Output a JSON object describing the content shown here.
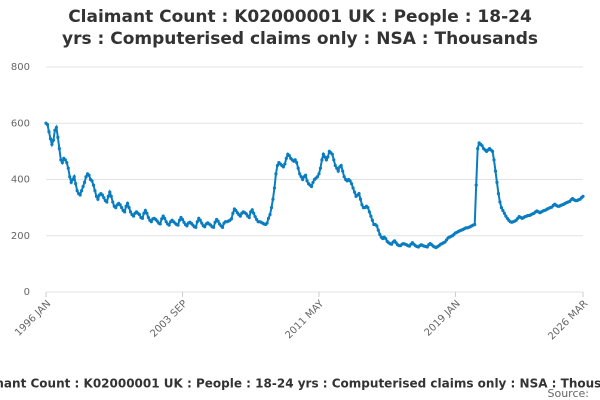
{
  "chart_data": {
    "type": "line",
    "title": "Claimant Count : K02000001 UK : People : 18-24 yrs : Computerised claims only : NSA : Thousands",
    "source": "Source:",
    "categories": [
      "1996 JAN",
      null,
      null,
      null,
      null,
      null,
      null,
      null,
      null,
      null,
      null,
      null,
      null,
      null,
      null,
      null,
      null,
      null,
      null,
      null,
      null,
      null,
      null,
      null,
      null,
      null,
      null,
      null,
      null,
      null,
      null,
      null,
      null,
      null,
      null,
      null,
      null,
      null,
      null,
      null,
      null,
      null,
      null,
      null,
      null,
      null,
      null,
      null,
      null,
      null,
      null,
      null,
      null,
      null,
      null,
      null,
      null,
      null,
      null,
      null,
      null,
      null,
      null,
      null,
      null,
      null,
      null,
      null,
      null,
      null,
      null,
      null,
      null,
      null,
      null,
      null,
      null,
      null,
      null,
      null,
      null,
      null,
      null,
      null,
      null,
      null,
      null,
      null,
      null,
      null,
      null,
      null,
      "2003 SEP",
      null,
      null,
      null,
      null,
      null,
      null,
      null,
      null,
      null,
      null,
      null,
      null,
      null,
      null,
      null,
      null,
      null,
      null,
      null,
      null,
      null,
      null,
      null,
      null,
      null,
      null,
      null,
      null,
      null,
      null,
      null,
      null,
      null,
      null,
      null,
      null,
      null,
      null,
      null,
      null,
      null,
      null,
      null,
      null,
      null,
      null,
      null,
      null,
      null,
      null,
      null,
      null,
      null,
      null,
      null,
      null,
      null,
      null,
      null,
      null,
      null,
      null,
      null,
      null,
      null,
      null,
      null,
      null,
      null,
      null,
      null,
      null,
      null,
      null,
      null,
      null,
      null,
      null,
      null,
      null,
      null,
      null,
      null,
      null,
      null,
      null,
      null,
      null,
      null,
      null,
      null,
      "2011 MAY",
      null,
      null,
      null,
      null,
      null,
      null,
      null,
      null,
      null,
      null,
      null,
      null,
      null,
      null,
      null,
      null,
      null,
      null,
      null,
      null,
      null,
      null,
      null,
      null,
      null,
      null,
      null,
      null,
      null,
      null,
      null,
      null,
      null,
      null,
      null,
      null,
      null,
      null,
      null,
      null,
      null,
      null,
      null,
      null,
      null,
      null,
      null,
      null,
      null,
      null,
      null,
      null,
      null,
      null,
      null,
      null,
      null,
      null,
      null,
      null,
      null,
      null,
      null,
      null,
      null,
      null,
      null,
      null,
      null,
      null,
      null,
      null,
      null,
      null,
      null,
      null,
      null,
      null,
      null,
      null,
      null,
      null,
      null,
      null,
      null,
      null,
      null,
      null,
      null,
      null,
      null,
      "2019 JAN",
      null,
      null,
      null,
      null,
      null,
      null,
      null,
      null,
      null,
      null,
      null,
      null,
      null,
      null,
      null,
      null,
      null,
      null,
      null,
      null,
      null,
      null,
      null,
      null,
      null,
      null,
      null,
      null,
      null,
      null,
      null,
      null,
      null,
      null,
      null,
      null,
      null,
      null,
      null,
      null,
      null,
      null,
      null,
      null,
      null,
      null,
      null,
      null,
      null,
      null,
      null,
      null,
      null,
      null,
      null,
      null,
      null,
      null,
      null,
      null,
      null,
      null,
      null,
      null,
      null,
      null,
      null,
      null,
      null,
      null,
      null,
      null,
      null,
      null,
      null,
      null,
      null,
      null,
      null,
      null,
      null,
      null,
      null,
      null,
      null,
      "2026 MAR"
    ],
    "series": [
      {
        "name": "Claimant Count",
        "color": "#0a7cc0",
        "values": [
          600,
          595,
          570,
          545,
          525,
          540,
          575,
          585,
          550,
          510,
          470,
          460,
          475,
          470,
          460,
          440,
          410,
          390,
          400,
          410,
          385,
          360,
          350,
          345,
          360,
          375,
          390,
          410,
          420,
          415,
          400,
          395,
          380,
          360,
          340,
          330,
          345,
          350,
          345,
          335,
          325,
          320,
          340,
          355,
          340,
          320,
          305,
          300,
          310,
          315,
          310,
          300,
          290,
          285,
          305,
          315,
          300,
          285,
          275,
          270,
          280,
          285,
          280,
          275,
          265,
          262,
          280,
          290,
          280,
          265,
          255,
          250,
          260,
          262,
          258,
          252,
          245,
          242,
          260,
          270,
          262,
          250,
          242,
          238,
          250,
          255,
          250,
          245,
          240,
          238,
          255,
          265,
          258,
          248,
          240,
          235,
          245,
          248,
          244,
          238,
          232,
          230,
          250,
          262,
          255,
          245,
          236,
          232,
          242,
          246,
          242,
          238,
          232,
          230,
          248,
          258,
          252,
          242,
          235,
          230,
          245,
          250,
          250,
          252,
          255,
          260,
          280,
          295,
          290,
          282,
          275,
          270,
          280,
          285,
          282,
          278,
          270,
          265,
          285,
          292,
          280,
          268,
          258,
          250,
          250,
          248,
          245,
          242,
          240,
          245,
          262,
          275,
          300,
          330,
          370,
          420,
          450,
          460,
          455,
          450,
          445,
          455,
          475,
          490,
          485,
          475,
          470,
          465,
          470,
          460,
          440,
          420,
          410,
          400,
          410,
          415,
          395,
          385,
          380,
          375,
          390,
          400,
          405,
          410,
          420,
          440,
          470,
          490,
          480,
          470,
          480,
          500,
          495,
          490,
          470,
          450,
          440,
          430,
          445,
          450,
          430,
          410,
          400,
          395,
          400,
          395,
          385,
          370,
          355,
          340,
          345,
          350,
          330,
          310,
          300,
          300,
          305,
          300,
          285,
          270,
          255,
          240,
          240,
          235,
          220,
          205,
          195,
          190,
          195,
          190,
          180,
          175,
          172,
          170,
          178,
          182,
          175,
          168,
          165,
          165,
          170,
          172,
          170,
          168,
          165,
          163,
          170,
          175,
          170,
          165,
          162,
          160,
          165,
          168,
          165,
          163,
          162,
          160,
          168,
          172,
          168,
          163,
          160,
          158,
          162,
          165,
          170,
          172,
          175,
          178,
          185,
          192,
          195,
          198,
          200,
          205,
          210,
          212,
          215,
          218,
          220,
          222,
          225,
          228,
          228,
          230,
          232,
          235,
          238,
          240,
          380,
          510,
          530,
          525,
          520,
          510,
          505,
          500,
          505,
          510,
          505,
          500,
          470,
          430,
          390,
          350,
          320,
          300,
          290,
          280,
          270,
          262,
          255,
          250,
          248,
          250,
          252,
          255,
          262,
          268,
          265,
          262,
          265,
          268,
          270,
          272,
          272,
          275,
          278,
          280,
          285,
          288,
          285,
          282,
          285,
          288,
          290,
          292,
          295,
          298,
          300,
          302,
          308,
          312,
          308,
          305,
          305,
          308,
          310,
          312,
          315,
          318,
          320,
          322,
          328,
          332,
          328,
          325,
          325,
          328,
          330,
          335,
          340
        ]
      }
    ],
    "ylim": [
      0,
      800
    ],
    "yticks": [
      0,
      200,
      400,
      600,
      800
    ],
    "grid": true
  }
}
